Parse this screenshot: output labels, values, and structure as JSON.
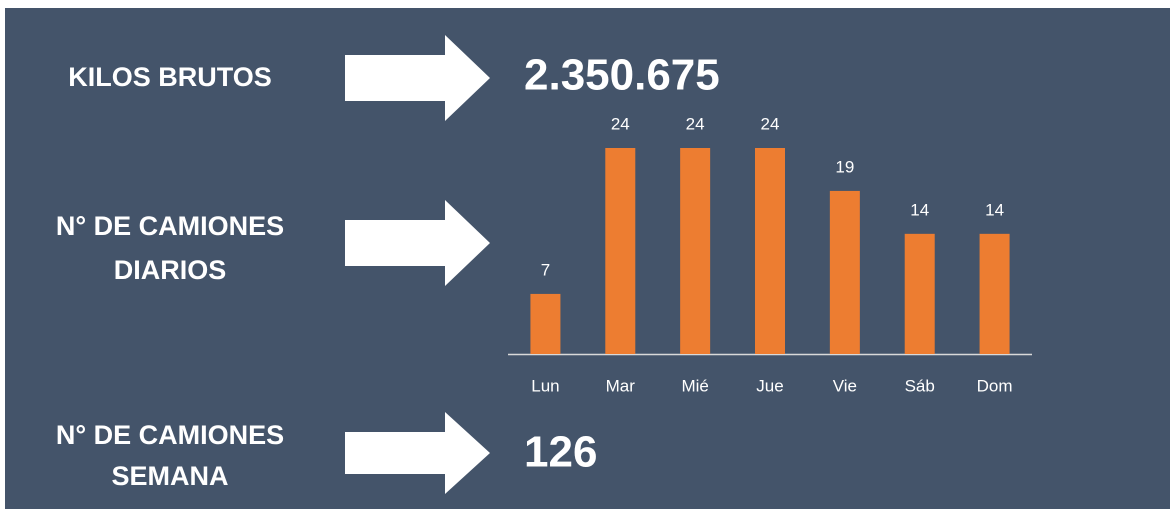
{
  "kilos": {
    "label": "KILOS BRUTOS",
    "value": "2.350.675"
  },
  "diarios": {
    "label_lines": [
      "N° DE CAMIONES",
      "DIARIOS"
    ]
  },
  "chart_data": {
    "type": "bar",
    "categories": [
      "Lun",
      "Mar",
      "Mié",
      "Jue",
      "Vie",
      "Sáb",
      "Dom"
    ],
    "values": [
      7,
      24,
      24,
      24,
      19,
      14,
      14
    ],
    "color": "#ed7d31"
  },
  "semana": {
    "label_lines": [
      "N° DE CAMIONES",
      "SEMANA"
    ],
    "value": "126"
  }
}
